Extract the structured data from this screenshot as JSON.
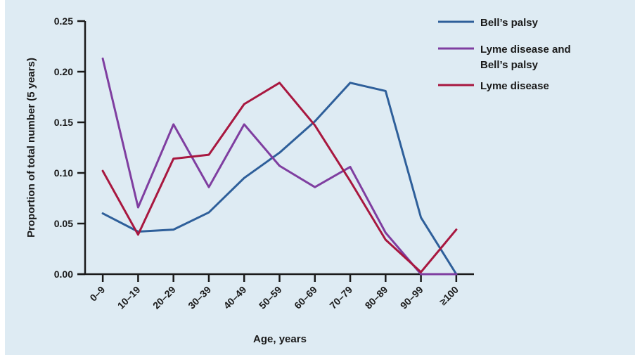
{
  "chart_data": {
    "type": "line",
    "xlabel": "Age, years",
    "ylabel": "Proportion of total number (5 years)",
    "categories": [
      "0–9",
      "10–19",
      "20–29",
      "30–39",
      "40–49",
      "50–59",
      "60–69",
      "70–79",
      "80–89",
      "90–99",
      "≥100"
    ],
    "ylim": [
      0,
      0.25
    ],
    "yticks": [
      "0.00",
      "0.05",
      "0.10",
      "0.15",
      "0.20",
      "0.25"
    ],
    "grid": false,
    "legend_position": "top-right",
    "series": [
      {
        "name": "Bell’s palsy",
        "color": "#2e5f9a",
        "values": [
          0.06,
          0.042,
          0.044,
          0.061,
          0.095,
          0.12,
          0.151,
          0.189,
          0.181,
          0.056,
          0.0
        ]
      },
      {
        "name": "Lyme disease and Bell’s palsy",
        "name_lines": [
          "Lyme disease and",
          "Bell’s palsy"
        ],
        "color": "#7f3ea0",
        "values": [
          0.213,
          0.066,
          0.148,
          0.086,
          0.148,
          0.107,
          0.086,
          0.106,
          0.041,
          0.0,
          0.0
        ]
      },
      {
        "name": "Lyme disease",
        "color": "#a8173f",
        "values": [
          0.102,
          0.039,
          0.114,
          0.118,
          0.168,
          0.189,
          0.147,
          0.092,
          0.034,
          0.002,
          0.044
        ]
      }
    ]
  }
}
